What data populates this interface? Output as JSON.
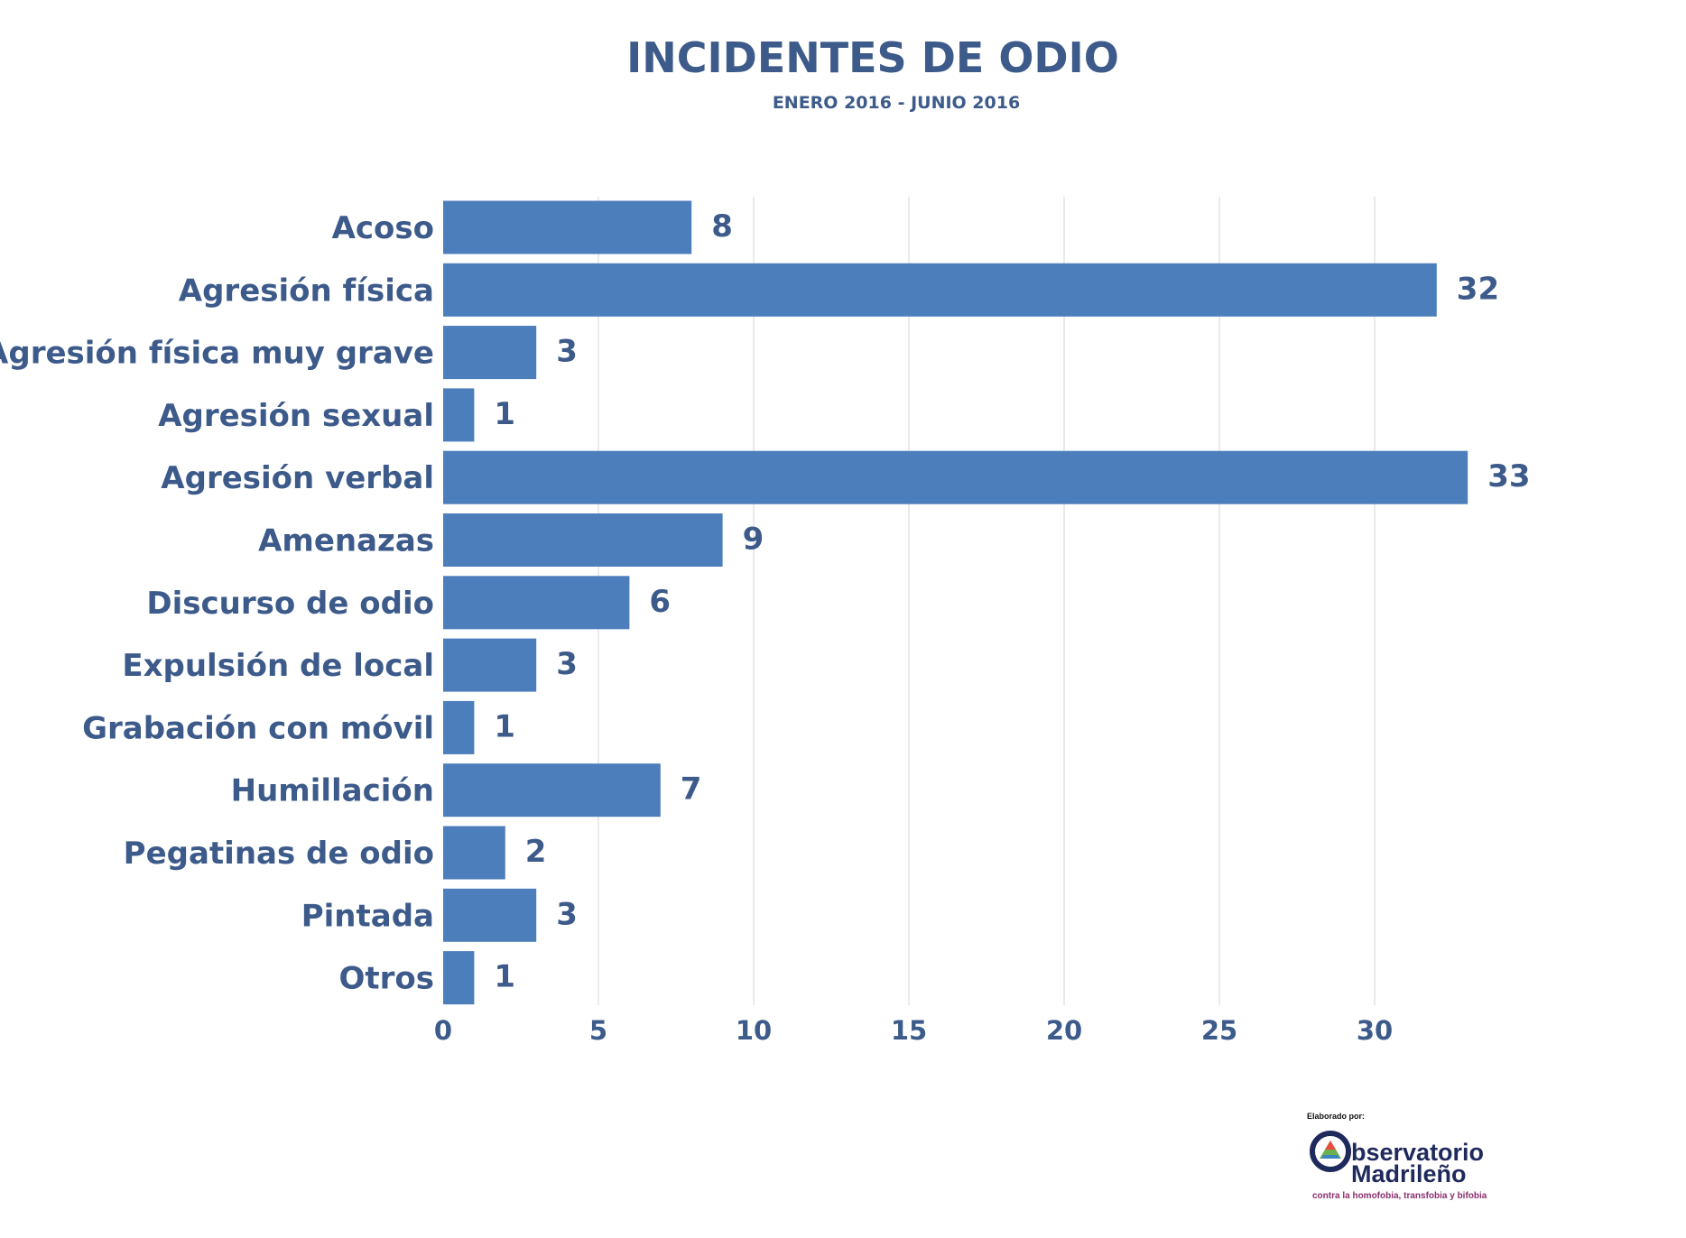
{
  "chart_data": {
    "type": "bar",
    "orientation": "horizontal",
    "title": "INCIDENTES DE ODIO",
    "subtitle": "ENERO 2016 - JUNIO 2016",
    "categories": [
      "Acoso",
      "Agresión física",
      "Agresión física muy grave",
      "Agresión sexual",
      "Agresión verbal",
      "Amenazas",
      "Discurso de odio",
      "Expulsión de local",
      "Grabación con móvil",
      "Humillación",
      "Pegatinas de odio",
      "Pintada",
      "Otros"
    ],
    "values": [
      8,
      32,
      3,
      1,
      33,
      9,
      6,
      3,
      1,
      7,
      2,
      3,
      1
    ],
    "xlim": [
      0,
      35
    ],
    "xticks": [
      0,
      5,
      10,
      15,
      20,
      25,
      30
    ],
    "grid": true,
    "bar_color": "#4d7ebc",
    "text_color": "#3c5a8a"
  },
  "credit": {
    "label": "Elaborado por:",
    "logo_line1": "bservatorio",
    "logo_line2": "Madrileño",
    "logo_tagline": "contra la homofobia, transfobia y bifobia"
  }
}
